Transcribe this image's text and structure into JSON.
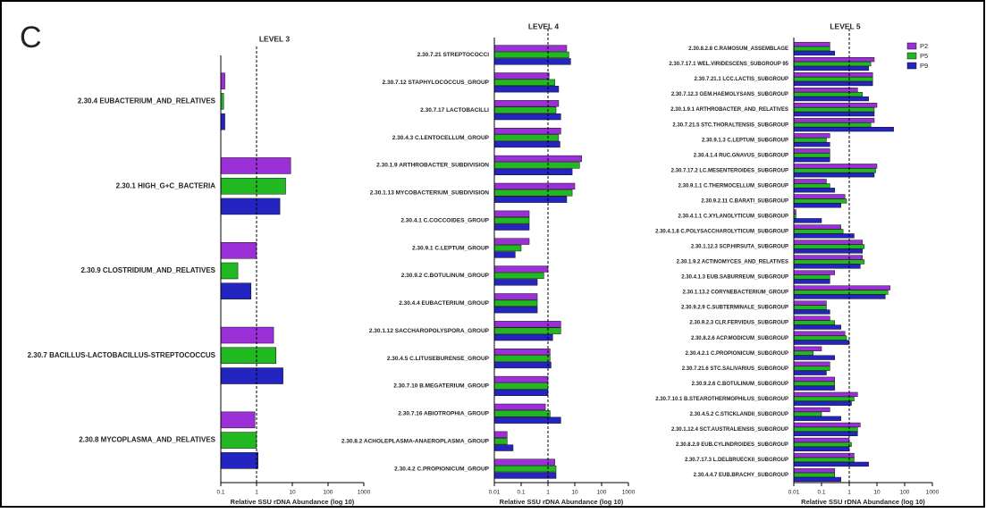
{
  "panel_label": "C",
  "chart_data": [
    {
      "type": "bar",
      "orientation": "horizontal",
      "title": "LEVEL 3",
      "xscale": "log",
      "xlim": [
        0.1,
        1000
      ],
      "xticks": [
        0.1,
        1,
        10,
        100,
        1000
      ],
      "reference_line": 1,
      "xlabel": "Relative SSU rDNA Abundance (log 10)",
      "categories": [
        "2.30.4 EUBACTERIUM_AND_RELATIVES",
        "2.30.1 HIGH_G+C_BACTERIA",
        "2.30.9 CLOSTRIDIUM_AND_RELATIVES",
        "2.30.7 BACILLUS-LACTOBACILLUS-STREPTOCOCCUS",
        "2.30.8 MYCOPLASMA_AND_RELATIVES"
      ],
      "series": [
        {
          "name": "P2",
          "color": "#9b30d8",
          "values": [
            0.13,
            9,
            1,
            3,
            0.9
          ]
        },
        {
          "name": "P5",
          "color": "#22b822",
          "values": [
            0.12,
            6.5,
            0.3,
            3.5,
            1
          ]
        },
        {
          "name": "P9",
          "color": "#2424c0",
          "values": [
            0.13,
            4.5,
            0.7,
            5.5,
            1.1
          ]
        }
      ]
    },
    {
      "type": "bar",
      "orientation": "horizontal",
      "title": "LEVEL 4",
      "xscale": "log",
      "xlim": [
        0.01,
        1000
      ],
      "xticks": [
        0.01,
        0.1,
        1,
        10,
        100,
        1000
      ],
      "reference_line": 1,
      "xlabel": "Relative SSU rDNA Abundance (log 10)",
      "categories": [
        "2.30.7.21 STREPTOCOCCI",
        "2.30.7.12 STAPHYLOCOCCUS_GROUP",
        "2.30.7.17 LACTOBACILLI",
        "2.30.4.3 C.LENTOCELLUM_GROUP",
        "2.30.1.9 ARTHROBACTER_SUBDIVISION",
        "2.30.1.13 MYCOBACTERIUM_SUBDIVISION",
        "2.30.4.1 C.COCCOIDES_GROUP",
        "2.30.9.1 C.LEPTUM_GROUP",
        "2.30.9.2 C.BOTULINUM_GROUP",
        "2.30.4.4 EUBACTERIUM_GROUP",
        "2.30.1.12 SACCHAROPOLYSPORA_GROUP",
        "2.30.4.5 C.LITUSEBURENSE_GROUP",
        "2.30.7.10 B.MEGATERIUM_GROUP",
        "2.30.7.16 ABIOTROPHIA_GROUP",
        "2.30.8.2 ACHOLEPLASMA-ANAEROPLASMA_GROUP",
        "2.30.4.2 C.PROPIONICUM_GROUP"
      ],
      "series": [
        {
          "name": "P2",
          "color": "#9b30d8",
          "values": [
            5,
            1.1,
            2.5,
            3,
            18,
            10,
            0.2,
            0.2,
            1,
            0.4,
            3,
            1.2,
            1,
            0.8,
            0.03,
            1.8
          ]
        },
        {
          "name": "P5",
          "color": "#22b822",
          "values": [
            6,
            1.8,
            2,
            2.5,
            15,
            8,
            0.2,
            0.1,
            0.7,
            0.4,
            3,
            1.2,
            1,
            1.2,
            0.03,
            2
          ]
        },
        {
          "name": "P9",
          "color": "#2424c0",
          "values": [
            7,
            2.5,
            3,
            2.8,
            8,
            5,
            0.2,
            0.06,
            0.4,
            0.4,
            1.5,
            1.3,
            1,
            3,
            0.05,
            2
          ]
        }
      ]
    },
    {
      "type": "bar",
      "orientation": "horizontal",
      "title": "LEVEL 5",
      "xscale": "log",
      "xlim": [
        0.01,
        1000
      ],
      "xticks": [
        0.01,
        0.1,
        1,
        10,
        100,
        1000
      ],
      "reference_line": 1,
      "legend": "upper right",
      "xlabel": "Relative SSU rDNA Abundance (log 10)",
      "categories": [
        "2.30.8.2.8 C.RAMOSUM_ASSEMBLAGE",
        "2.30.7.17.1 WEL.VIRIDESCENS_SUBGROUP 95",
        "2.30.7.21.1 LCC.LACTIS_SUBGROUP",
        "2.30.7.12.3 GEM.HAEMOLYSANS_SUBGROUP",
        "2.30.1.9.1 ARTHROBACTER_AND_RELATIVES",
        "2.30.7.21.5 STC.THORALTENSIS_SUBGROUP",
        "2.30.9.1.3 C.LEPTUM_SUBGROUP",
        "2.30.4.1.4 RUC.GNAVUS_SUBGROUP",
        "2.30.7.17.2 LC.MESENTEROIDES_SUBGROUP",
        "2.30.9.1.1 C.THERMOCELLUM_SUBGROUP",
        "2.30.9.2.11 C.BARATI_SUBGROUP",
        "2.30.4.1.1 C.XYLANOLYTICUM_SUBGROUP",
        "2.30.4.1.8 C.POLYSACCHAROLYTICUM_SUBGROUP",
        "2.30.1.12.3 SCP.HIRSUTA_SUBGROUP",
        "2.30.1.9.2 ACTINOMYCES_AND_RELATIVES",
        "2.30.4.1.3 EUB.SABURREUM_SUBGROUP",
        "2.30.1.13.2 CORYNEBACTERIUM_GROUP",
        "2.30.9.2.9 C.SUBTERMINALE_SUBGROUP",
        "2.30.9.2.3 CLR.FERVIDUS_SUBGROUP",
        "2.30.8.2.6 ACP.MODICUM_SUBGROUP",
        "2.30.4.2.1 C.PROPIONICUM_SUBGROUP",
        "2.30.7.21.6 STC.SALIVARIUS_SUBGROUP",
        "2.30.9.2.6 C.BOTULINUM_SUBGROUP",
        "2.30.7.10.1 B.STEAROTHERMOPHILUS_SUBGROUP",
        "2.30.4.5.2 C.STICKLANDII_SUBGROUP",
        "2.30.1.12.4 SCT.AUSTRALIENSIS_SUBGROUP",
        "2.30.8.2.9 EUB.CYLINDROIDES_SUBGROUP",
        "2.30.7.17.3 L.DELBRUECKII_SUBGROUP",
        "2.30.4.4.7 EUB.BRACHY_SUBGROUP"
      ],
      "series": [
        {
          "name": "P2",
          "color": "#9b30d8",
          "values": [
            0.2,
            8,
            7,
            2,
            10,
            8,
            0.2,
            0.2,
            10,
            0.15,
            0.7,
            0.012,
            0.5,
            3,
            3,
            0.3,
            30,
            0.15,
            0.2,
            0.7,
            0.1,
            0.2,
            0.3,
            2,
            0.2,
            2.5,
            1,
            1.5,
            0.3
          ]
        },
        {
          "name": "P5",
          "color": "#22b822",
          "values": [
            0.2,
            6,
            7,
            3,
            8,
            6,
            0.15,
            0.2,
            9,
            0.2,
            0.8,
            0.012,
            0.6,
            3.5,
            3.5,
            0.2,
            25,
            0.15,
            0.3,
            0.8,
            0.05,
            0.2,
            0.3,
            1.5,
            0.1,
            2,
            1.2,
            1.5,
            0.3
          ]
        },
        {
          "name": "P9",
          "color": "#2424c0",
          "values": [
            0.3,
            5,
            7,
            5,
            8,
            40,
            0.2,
            0.2,
            8,
            0.3,
            0.5,
            0.1,
            1.5,
            3,
            2.5,
            0.2,
            20,
            0.2,
            0.5,
            1,
            0.3,
            0.15,
            0.3,
            1.2,
            0.5,
            2,
            1,
            5,
            0.5
          ]
        }
      ]
    }
  ]
}
